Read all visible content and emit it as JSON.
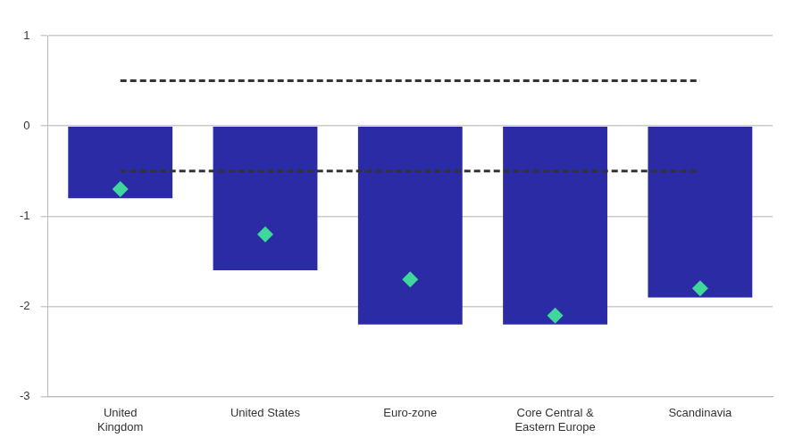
{
  "chart_data": {
    "type": "bar",
    "categories": [
      "United\nKingdom",
      "United States",
      "Euro-zone",
      "Core Central &\nEastern Europe",
      "Scandinavia"
    ],
    "ylim": [
      -3,
      1
    ],
    "yticks": [
      -3,
      -2,
      -1,
      0,
      1
    ],
    "grid": true,
    "series": [
      {
        "type": "bar",
        "color": "#2b2ba6",
        "values": [
          -0.8,
          -1.6,
          -2.2,
          -2.2,
          -1.9
        ]
      },
      {
        "type": "line",
        "marker": "diamond",
        "line_style": "none",
        "color": "#3fd89a",
        "values": [
          -0.7,
          -1.2,
          -1.7,
          -2.1,
          -1.8
        ]
      },
      {
        "type": "line",
        "marker": "none",
        "line_style": "dashed",
        "color": "#333333",
        "values": [
          0.5,
          0.5,
          0.5,
          0.5,
          0.5
        ]
      },
      {
        "type": "line",
        "marker": "none",
        "line_style": "dashed",
        "color": "#333333",
        "values": [
          -0.5,
          -0.5,
          -0.5,
          -0.5,
          -0.5
        ]
      }
    ]
  }
}
